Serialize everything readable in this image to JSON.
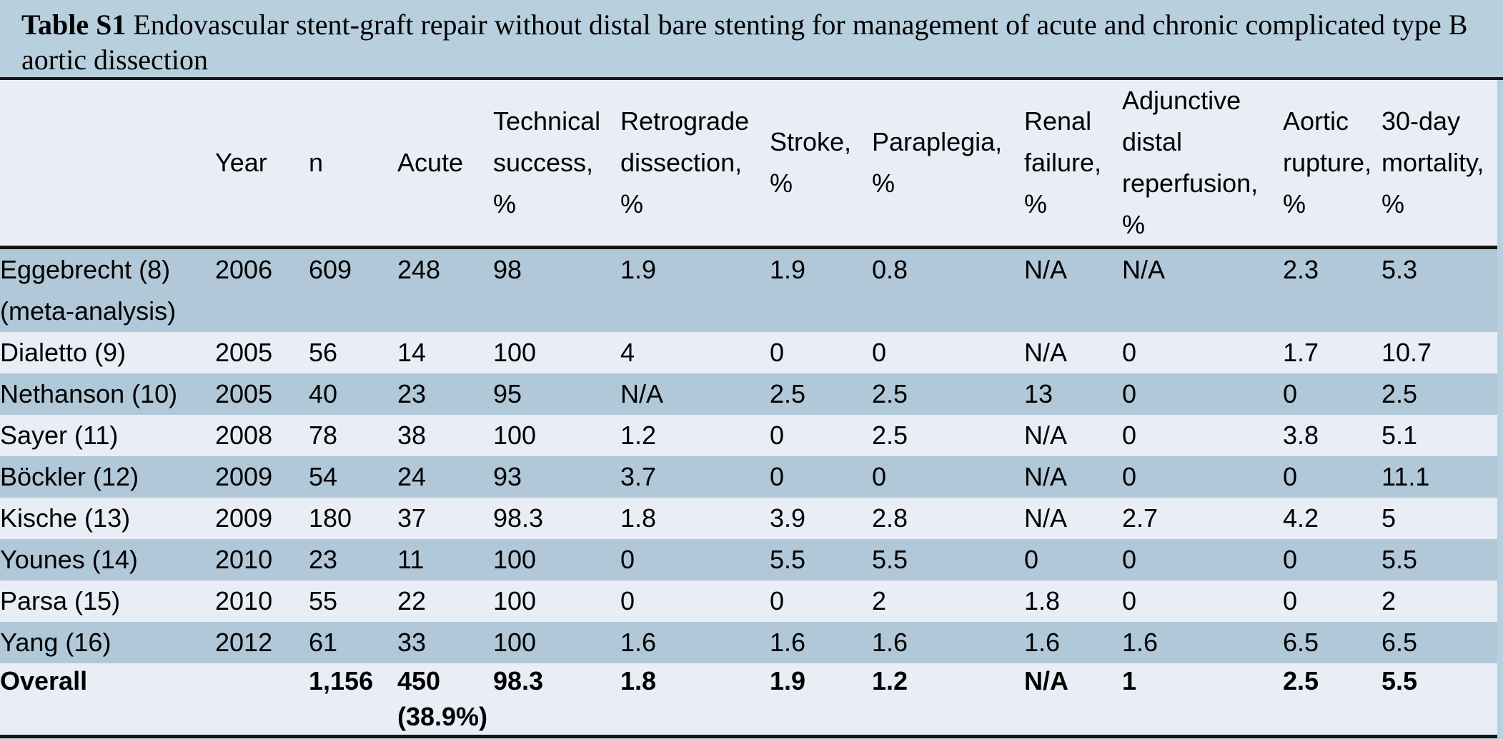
{
  "caption": {
    "label": "Table S1",
    "text": " Endovascular stent-graft repair without distal bare stenting for management of acute and chronic complicated type B aortic dissection"
  },
  "colors": {
    "title_background": "#b8cfde",
    "row_dark": "#b0c8d8",
    "row_light": "#e9edf5",
    "header_background": "#e9edf5",
    "border": "#161616",
    "text": "#000000"
  },
  "table": {
    "columns": [
      {
        "key": "study",
        "label": ""
      },
      {
        "key": "year",
        "label": "Year"
      },
      {
        "key": "n",
        "label": "n"
      },
      {
        "key": "acute",
        "label": "Acute"
      },
      {
        "key": "technical_success",
        "label": "Technical success, %"
      },
      {
        "key": "retrograde_dissection",
        "label": "Retrograde dissection, %"
      },
      {
        "key": "stroke",
        "label": "Stroke, %"
      },
      {
        "key": "paraplegia",
        "label": "Paraplegia, %"
      },
      {
        "key": "renal_failure",
        "label": "Renal failure, %"
      },
      {
        "key": "adjunctive_distal_reperfusion",
        "label": "Adjunctive distal reperfusion, %"
      },
      {
        "key": "aortic_rupture",
        "label": "Aortic rupture, %"
      },
      {
        "key": "mortality_30day",
        "label": "30-day mortality, %"
      }
    ],
    "rows": [
      {
        "study": "Eggebrecht (8)\n(meta-analysis)",
        "year": "2006",
        "n": "609",
        "acute": "248",
        "technical_success": "98",
        "retrograde_dissection": "1.9",
        "stroke": "1.9",
        "paraplegia": "0.8",
        "renal_failure": "N/A",
        "adjunctive_distal_reperfusion": "N/A",
        "aortic_rupture": "2.3",
        "mortality_30day": "5.3",
        "emphasis": false
      },
      {
        "study": "Dialetto (9)",
        "year": "2005",
        "n": "56",
        "acute": "14",
        "technical_success": "100",
        "retrograde_dissection": "4",
        "stroke": "0",
        "paraplegia": "0",
        "renal_failure": "N/A",
        "adjunctive_distal_reperfusion": "0",
        "aortic_rupture": "1.7",
        "mortality_30day": "10.7",
        "emphasis": false
      },
      {
        "study": "Nethanson (10)",
        "year": "2005",
        "n": "40",
        "acute": "23",
        "technical_success": "95",
        "retrograde_dissection": "N/A",
        "stroke": "2.5",
        "paraplegia": "2.5",
        "renal_failure": "13",
        "adjunctive_distal_reperfusion": "0",
        "aortic_rupture": "0",
        "mortality_30day": "2.5",
        "emphasis": false
      },
      {
        "study": "Sayer (11)",
        "year": "2008",
        "n": "78",
        "acute": "38",
        "technical_success": "100",
        "retrograde_dissection": "1.2",
        "stroke": "0",
        "paraplegia": "2.5",
        "renal_failure": "N/A",
        "adjunctive_distal_reperfusion": "0",
        "aortic_rupture": "3.8",
        "mortality_30day": "5.1",
        "emphasis": false
      },
      {
        "study": "Böckler (12)",
        "year": "2009",
        "n": "54",
        "acute": "24",
        "technical_success": "93",
        "retrograde_dissection": "3.7",
        "stroke": "0",
        "paraplegia": "0",
        "renal_failure": "N/A",
        "adjunctive_distal_reperfusion": "0",
        "aortic_rupture": "0",
        "mortality_30day": "11.1",
        "emphasis": false
      },
      {
        "study": "Kische (13)",
        "year": "2009",
        "n": "180",
        "acute": "37",
        "technical_success": "98.3",
        "retrograde_dissection": "1.8",
        "stroke": "3.9",
        "paraplegia": "2.8",
        "renal_failure": "N/A",
        "adjunctive_distal_reperfusion": "2.7",
        "aortic_rupture": "4.2",
        "mortality_30day": "5",
        "emphasis": false
      },
      {
        "study": "Younes (14)",
        "year": "2010",
        "n": "23",
        "acute": "11",
        "technical_success": "100",
        "retrograde_dissection": "0",
        "stroke": "5.5",
        "paraplegia": "5.5",
        "renal_failure": "0",
        "adjunctive_distal_reperfusion": "0",
        "aortic_rupture": "0",
        "mortality_30day": "5.5",
        "emphasis": false
      },
      {
        "study": "Parsa (15)",
        "year": "2010",
        "n": "55",
        "acute": "22",
        "technical_success": "100",
        "retrograde_dissection": "0",
        "stroke": "0",
        "paraplegia": "2",
        "renal_failure": "1.8",
        "adjunctive_distal_reperfusion": "0",
        "aortic_rupture": "0",
        "mortality_30day": "2",
        "emphasis": false
      },
      {
        "study": "Yang (16)",
        "year": "2012",
        "n": "61",
        "acute": "33",
        "technical_success": "100",
        "retrograde_dissection": "1.6",
        "stroke": "1.6",
        "paraplegia": "1.6",
        "renal_failure": "1.6",
        "adjunctive_distal_reperfusion": "1.6",
        "aortic_rupture": "6.5",
        "mortality_30day": "6.5",
        "emphasis": false
      },
      {
        "study": "Overall",
        "year": "",
        "n": "1,156",
        "acute": "450\n(38.9%)",
        "technical_success": "98.3",
        "retrograde_dissection": "1.8",
        "stroke": "1.9",
        "paraplegia": "1.2",
        "renal_failure": "N/A",
        "adjunctive_distal_reperfusion": "1",
        "aortic_rupture": "2.5",
        "mortality_30day": "5.5",
        "emphasis": true
      }
    ]
  }
}
